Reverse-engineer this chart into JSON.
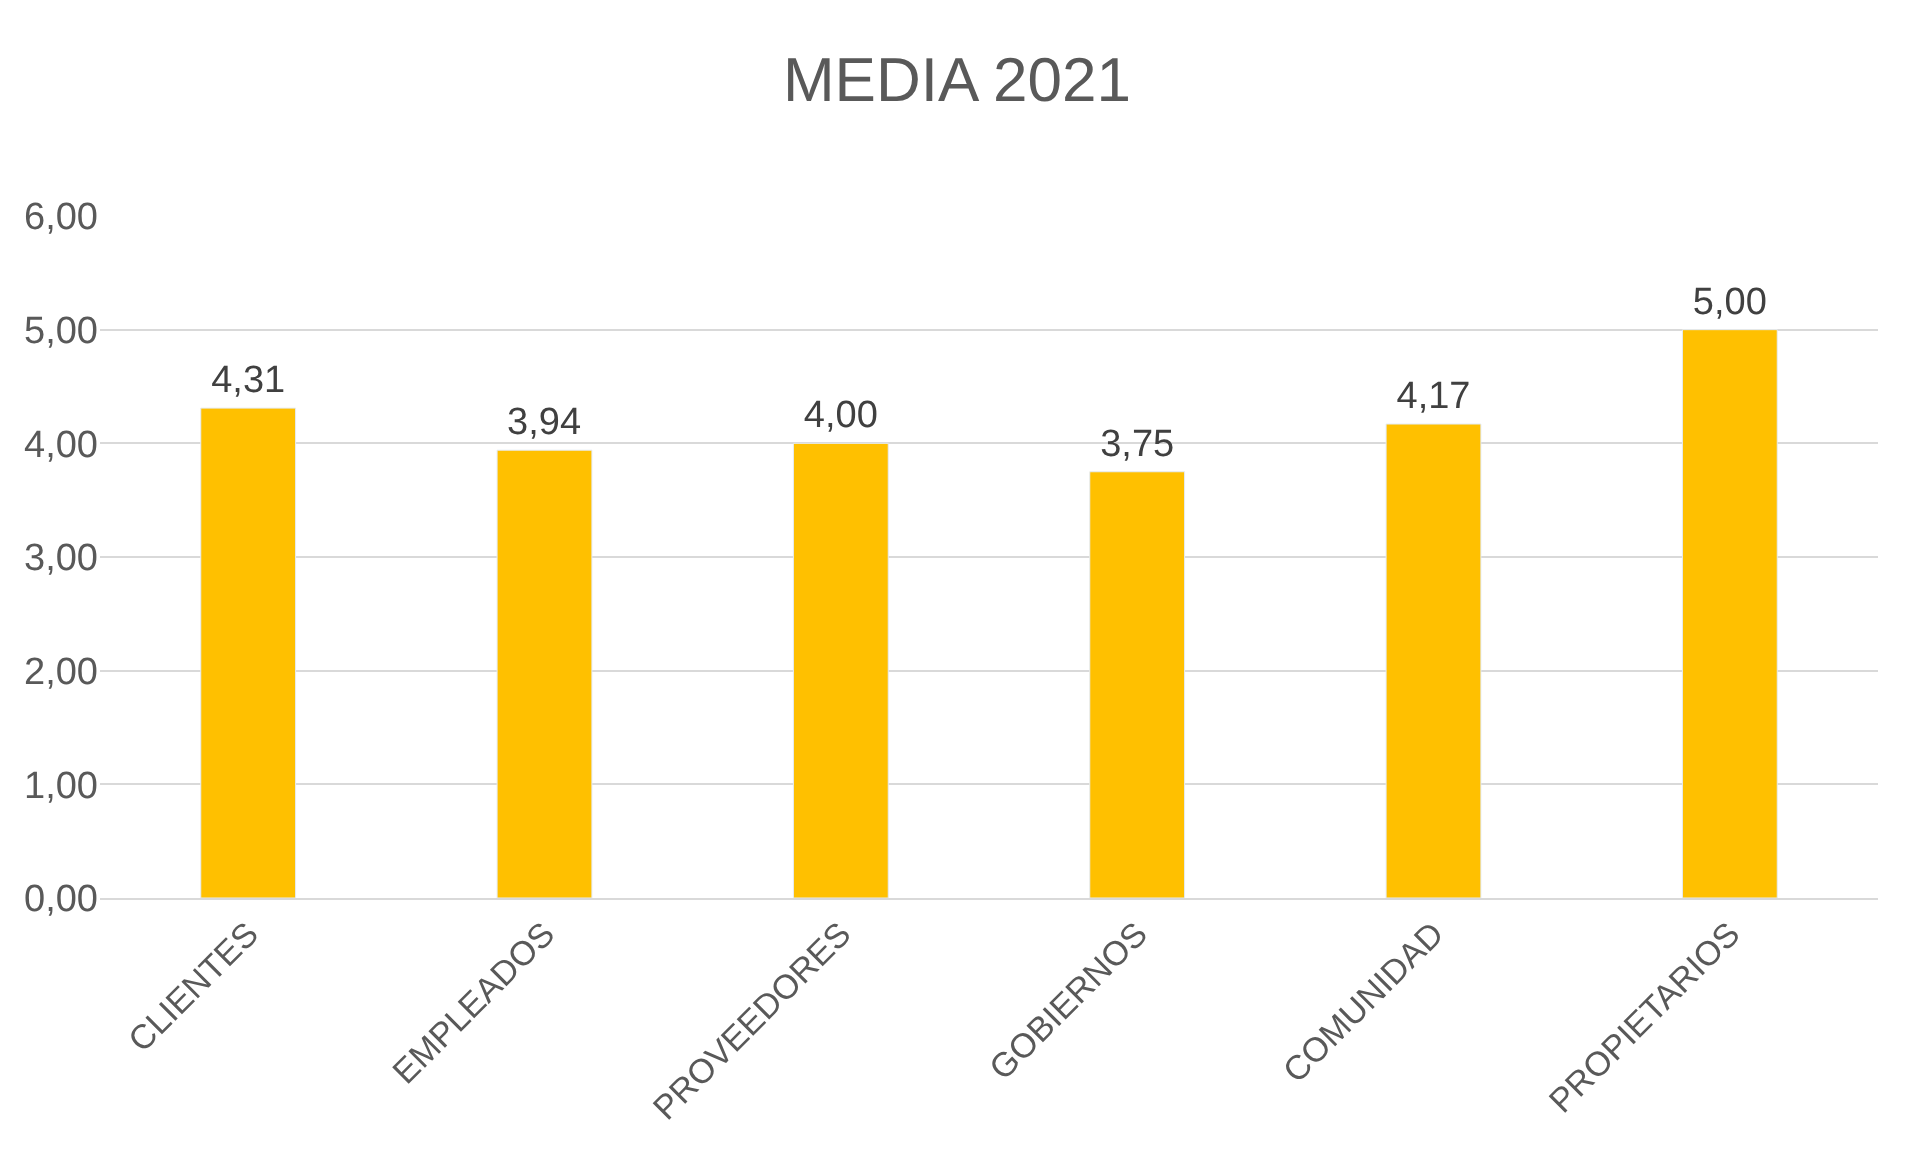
{
  "chart_data": {
    "type": "bar",
    "title": "MEDIA 2021",
    "categories": [
      "CLIENTES",
      "EMPLEADOS",
      "PROVEEDORES",
      "GOBIERNOS",
      "COMUNIDAD",
      "PROPIETARIOS"
    ],
    "values": [
      4.31,
      3.94,
      4.0,
      3.75,
      4.17,
      5.0
    ],
    "value_labels": [
      "4,31",
      "3,94",
      "4,00",
      "3,75",
      "4,17",
      "5,00"
    ],
    "color": "#ffc000",
    "ylim": [
      0,
      6
    ],
    "yticks": [
      {
        "value": 0,
        "label": "0,00"
      },
      {
        "value": 1,
        "label": "1,00"
      },
      {
        "value": 2,
        "label": "2,00"
      },
      {
        "value": 3,
        "label": "3,00"
      },
      {
        "value": 4,
        "label": "4,00"
      },
      {
        "value": 5,
        "label": "5,00"
      },
      {
        "value": 6,
        "label": "6,00"
      }
    ],
    "grid": "y",
    "legend": false
  }
}
